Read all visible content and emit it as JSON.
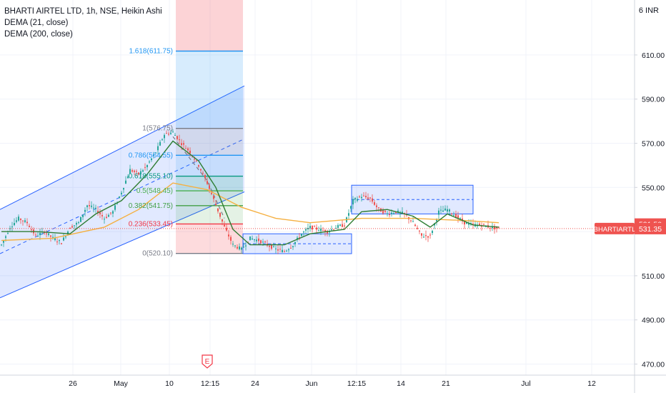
{
  "legend": {
    "symbol_line": "BHARTI AIRTEL LTD, 1h, NSE, Heikin Ashi",
    "indicator1": "DEMA (21, close)",
    "indicator2": "DEMA (200, close)"
  },
  "currency_unit": "6 INR",
  "colors": {
    "bull": "#26a69a",
    "bear": "#ef5350",
    "dema21": "#2e7d32",
    "dema200": "#f5b041",
    "channel": "#2962ff",
    "price_line": "#ef5350"
  },
  "price_badges": {
    "last_close": "531.50",
    "symbol_tag": "BHARTIARTL",
    "symbol_price": "531.35"
  },
  "earnings_marker": "E",
  "fib_levels": [
    {
      "label": "1.618(611.75)",
      "value": 611.75,
      "color": "#2196f3"
    },
    {
      "label": "1(576.75)",
      "value": 576.75,
      "color": "#787b86"
    },
    {
      "label": "0.786(564.55)",
      "value": 564.55,
      "color": "#2196f3"
    },
    {
      "label": "0.618(555.10)",
      "value": 555.1,
      "color": "#089981"
    },
    {
      "label": "0.5(548.45)",
      "value": 548.45,
      "color": "#4caf50"
    },
    {
      "label": "0.382(541.75)",
      "value": 541.75,
      "color": "#43a047"
    },
    {
      "label": "0.236(533.45)",
      "value": 533.45,
      "color": "#f23645"
    },
    {
      "label": "0(520.10)",
      "value": 520.1,
      "color": "#787b86"
    }
  ],
  "chart_data": {
    "type": "candlestick",
    "title": "BHARTI AIRTEL LTD, 1h, NSE, Heikin Ashi",
    "ylim": [
      464,
      622
    ],
    "y_ticks": [
      470.0,
      490.0,
      510.0,
      530.0,
      550.0,
      570.0,
      590.0,
      610.0
    ],
    "y_tick_labels": [
      "470.00",
      "490.00",
      "510.00",
      "",
      "550.00",
      "570.00",
      "590.00",
      "610.00"
    ],
    "x_tick_labels": [
      "26",
      "May",
      "10",
      "12:15",
      "24",
      "Jun",
      "12:15",
      "14",
      "21",
      "Jul",
      "12"
    ],
    "grid": true,
    "series": [
      {
        "name": "DEMA (21, close)",
        "type": "line"
      },
      {
        "name": "DEMA (200, close)",
        "type": "line"
      }
    ],
    "price_path": [
      {
        "x": 0,
        "price": 524
      },
      {
        "x": 1,
        "price": 532
      },
      {
        "x": 2,
        "price": 536
      },
      {
        "x": 3,
        "price": 534
      },
      {
        "x": 4,
        "price": 528
      },
      {
        "x": 5,
        "price": 530
      },
      {
        "x": 6,
        "price": 527
      },
      {
        "x": 7,
        "price": 525
      },
      {
        "x": 8,
        "price": 532
      },
      {
        "x": 9,
        "price": 534
      },
      {
        "x": 10,
        "price": 542
      },
      {
        "x": 11,
        "price": 540
      },
      {
        "x": 12,
        "price": 536
      },
      {
        "x": 13,
        "price": 539
      },
      {
        "x": 14,
        "price": 548
      },
      {
        "x": 15,
        "price": 558
      },
      {
        "x": 16,
        "price": 556
      },
      {
        "x": 17,
        "price": 560
      },
      {
        "x": 18,
        "price": 566
      },
      {
        "x": 19,
        "price": 574
      },
      {
        "x": 20,
        "price": 575
      },
      {
        "x": 21,
        "price": 570
      },
      {
        "x": 22,
        "price": 566
      },
      {
        "x": 23,
        "price": 560
      },
      {
        "x": 24,
        "price": 552
      },
      {
        "x": 25,
        "price": 542
      },
      {
        "x": 26,
        "price": 532
      },
      {
        "x": 27,
        "price": 524
      },
      {
        "x": 28,
        "price": 522
      },
      {
        "x": 29,
        "price": 527
      },
      {
        "x": 30,
        "price": 526
      },
      {
        "x": 31,
        "price": 524
      },
      {
        "x": 32,
        "price": 522
      },
      {
        "x": 33,
        "price": 521
      },
      {
        "x": 34,
        "price": 524
      },
      {
        "x": 35,
        "price": 529
      },
      {
        "x": 36,
        "price": 532
      },
      {
        "x": 37,
        "price": 531
      },
      {
        "x": 38,
        "price": 530
      },
      {
        "x": 39,
        "price": 532
      },
      {
        "x": 40,
        "price": 533
      },
      {
        "x": 41,
        "price": 544
      },
      {
        "x": 42,
        "price": 546
      },
      {
        "x": 43,
        "price": 545
      },
      {
        "x": 44,
        "price": 540
      },
      {
        "x": 45,
        "price": 538
      },
      {
        "x": 46,
        "price": 539
      },
      {
        "x": 47,
        "price": 538
      },
      {
        "x": 48,
        "price": 534
      },
      {
        "x": 49,
        "price": 528
      },
      {
        "x": 50,
        "price": 528
      },
      {
        "x": 51,
        "price": 539
      },
      {
        "x": 52,
        "price": 540
      },
      {
        "x": 53,
        "price": 537
      },
      {
        "x": 54,
        "price": 534
      },
      {
        "x": 55,
        "price": 533
      },
      {
        "x": 56,
        "price": 533
      },
      {
        "x": 57,
        "price": 532
      },
      {
        "x": 58,
        "price": 531.35
      }
    ],
    "dema21": [
      {
        "x": 0,
        "price": 530
      },
      {
        "x": 4,
        "price": 530
      },
      {
        "x": 8,
        "price": 529
      },
      {
        "x": 11,
        "price": 538
      },
      {
        "x": 14,
        "price": 544
      },
      {
        "x": 17,
        "price": 556
      },
      {
        "x": 20,
        "price": 571
      },
      {
        "x": 23,
        "price": 562
      },
      {
        "x": 25,
        "price": 550
      },
      {
        "x": 27,
        "price": 531
      },
      {
        "x": 29,
        "price": 524
      },
      {
        "x": 33,
        "price": 524
      },
      {
        "x": 36,
        "price": 529
      },
      {
        "x": 40,
        "price": 531
      },
      {
        "x": 42,
        "price": 539
      },
      {
        "x": 45,
        "price": 540
      },
      {
        "x": 48,
        "price": 537
      },
      {
        "x": 50,
        "price": 532
      },
      {
        "x": 52,
        "price": 538
      },
      {
        "x": 55,
        "price": 533
      },
      {
        "x": 58,
        "price": 532
      }
    ],
    "dema200": [
      {
        "x": 0,
        "price": 526
      },
      {
        "x": 6,
        "price": 527
      },
      {
        "x": 12,
        "price": 532
      },
      {
        "x": 16,
        "price": 540
      },
      {
        "x": 20,
        "price": 552
      },
      {
        "x": 24,
        "price": 549
      },
      {
        "x": 28,
        "price": 541
      },
      {
        "x": 32,
        "price": 536
      },
      {
        "x": 36,
        "price": 534
      },
      {
        "x": 42,
        "price": 536
      },
      {
        "x": 48,
        "price": 536
      },
      {
        "x": 54,
        "price": 535
      },
      {
        "x": 58,
        "price": 534
      }
    ]
  }
}
